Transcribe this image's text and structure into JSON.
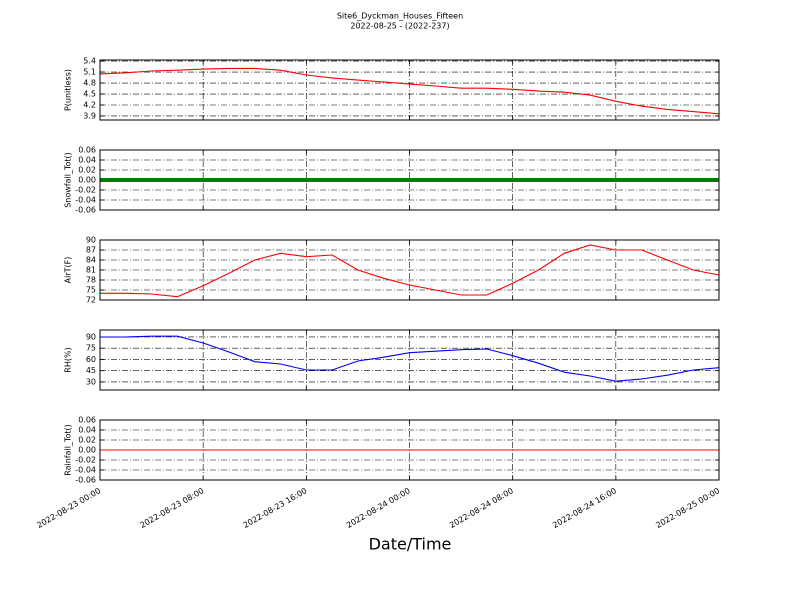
{
  "title": "Site6_Dyckman_Houses_Fifteen",
  "subtitle": "2022-08-25 - (2022-237)",
  "xlabel": "Date/Time",
  "chart_data": [
    {
      "type": "line",
      "ylabel": "P(unitless)",
      "ylim": [
        3.79,
        5.43
      ],
      "yticks": [
        3.9,
        4.2,
        4.5,
        4.8,
        5.1,
        5.4
      ],
      "grid": true,
      "xlim": [
        "2022-08-23 00:00",
        "2022-08-25 00:00"
      ],
      "xticks": [
        "2022-08-23 00:00",
        "2022-08-23 08:00",
        "2022-08-23 16:00",
        "2022-08-24 00:00",
        "2022-08-24 08:00",
        "2022-08-24 16:00",
        "2022-08-25 00:00"
      ],
      "x": [
        "2022-08-23 00:00",
        "2022-08-23 02:00",
        "2022-08-23 04:00",
        "2022-08-23 06:00",
        "2022-08-23 08:00",
        "2022-08-23 10:00",
        "2022-08-23 12:00",
        "2022-08-23 14:00",
        "2022-08-23 16:00",
        "2022-08-23 18:00",
        "2022-08-23 20:00",
        "2022-08-23 22:00",
        "2022-08-24 00:00",
        "2022-08-24 02:00",
        "2022-08-24 04:00",
        "2022-08-24 06:00",
        "2022-08-24 08:00",
        "2022-08-24 10:00",
        "2022-08-24 12:00",
        "2022-08-24 14:00",
        "2022-08-24 16:00",
        "2022-08-24 18:00",
        "2022-08-24 20:00",
        "2022-08-24 22:00",
        "2022-08-25 00:00"
      ],
      "color": "#ff0000",
      "values": [
        5.05,
        5.08,
        5.13,
        5.15,
        5.18,
        5.2,
        5.2,
        5.15,
        5.02,
        4.94,
        4.88,
        4.83,
        4.77,
        4.72,
        4.66,
        4.66,
        4.63,
        4.58,
        4.55,
        4.47,
        4.3,
        4.17,
        4.08,
        4.02,
        3.96
      ]
    },
    {
      "type": "line",
      "ylabel": "Snowfall_Tot()",
      "ylim": [
        -0.06,
        0.06
      ],
      "yticks": [
        -0.06,
        -0.04,
        -0.02,
        {
          "value": 0,
          "label": "0.00"
        },
        0.02,
        0.04,
        0.06
      ],
      "grid": true,
      "xlim": [
        "2022-08-23 00:00",
        "2022-08-25 00:00"
      ],
      "xticks": [
        "2022-08-23 00:00",
        "2022-08-23 08:00",
        "2022-08-23 16:00",
        "2022-08-24 00:00",
        "2022-08-24 08:00",
        "2022-08-24 16:00",
        "2022-08-25 00:00"
      ],
      "x": [
        "2022-08-23 00:00",
        "2022-08-23 02:00",
        "2022-08-23 04:00",
        "2022-08-23 06:00",
        "2022-08-23 08:00",
        "2022-08-23 10:00",
        "2022-08-23 12:00",
        "2022-08-23 14:00",
        "2022-08-23 16:00",
        "2022-08-23 18:00",
        "2022-08-23 20:00",
        "2022-08-23 22:00",
        "2022-08-24 00:00",
        "2022-08-24 02:00",
        "2022-08-24 04:00",
        "2022-08-24 06:00",
        "2022-08-24 08:00",
        "2022-08-24 10:00",
        "2022-08-24 12:00",
        "2022-08-24 14:00",
        "2022-08-24 16:00",
        "2022-08-24 18:00",
        "2022-08-24 20:00",
        "2022-08-24 22:00",
        "2022-08-25 00:00"
      ],
      "color": "#008000",
      "values": [
        0,
        0,
        0,
        0,
        0,
        0,
        0,
        0,
        0,
        0,
        0,
        0,
        0,
        0,
        0,
        0,
        0,
        0,
        0,
        0,
        0,
        0,
        0,
        0,
        0
      ]
    },
    {
      "type": "line",
      "ylabel": "AirT(F)",
      "ylim": [
        72,
        90
      ],
      "yticks": [
        72,
        75,
        78,
        81,
        84,
        87,
        90
      ],
      "grid": true,
      "xlim": [
        "2022-08-23 00:00",
        "2022-08-25 00:00"
      ],
      "xticks": [
        "2022-08-23 00:00",
        "2022-08-23 08:00",
        "2022-08-23 16:00",
        "2022-08-24 00:00",
        "2022-08-24 08:00",
        "2022-08-24 16:00",
        "2022-08-25 00:00"
      ],
      "x": [
        "2022-08-23 00:00",
        "2022-08-23 02:00",
        "2022-08-23 04:00",
        "2022-08-23 06:00",
        "2022-08-23 08:00",
        "2022-08-23 10:00",
        "2022-08-23 12:00",
        "2022-08-23 14:00",
        "2022-08-23 16:00",
        "2022-08-23 18:00",
        "2022-08-23 20:00",
        "2022-08-23 22:00",
        "2022-08-24 00:00",
        "2022-08-24 02:00",
        "2022-08-24 04:00",
        "2022-08-24 06:00",
        "2022-08-24 08:00",
        "2022-08-24 10:00",
        "2022-08-24 12:00",
        "2022-08-24 14:00",
        "2022-08-24 16:00",
        "2022-08-24 18:00",
        "2022-08-24 20:00",
        "2022-08-24 22:00",
        "2022-08-25 00:00"
      ],
      "color": "#ff0000",
      "values": [
        74,
        74,
        73.8,
        73,
        76.3,
        80,
        84,
        86,
        85,
        85.5,
        81,
        78.5,
        76.5,
        75,
        73.5,
        73.5,
        77,
        81,
        86,
        88.5,
        87,
        87,
        84,
        81,
        79.5
      ]
    },
    {
      "type": "line",
      "ylabel": "RH(%)",
      "ylim": [
        19.3,
        99.3
      ],
      "yticks": [
        30,
        45,
        60,
        75,
        90
      ],
      "grid": true,
      "xlim": [
        "2022-08-23 00:00",
        "2022-08-25 00:00"
      ],
      "xticks": [
        "2022-08-23 00:00",
        "2022-08-23 08:00",
        "2022-08-23 16:00",
        "2022-08-24 00:00",
        "2022-08-24 08:00",
        "2022-08-24 16:00",
        "2022-08-25 00:00"
      ],
      "x": [
        "2022-08-23 00:00",
        "2022-08-23 02:00",
        "2022-08-23 04:00",
        "2022-08-23 06:00",
        "2022-08-23 08:00",
        "2022-08-23 10:00",
        "2022-08-23 12:00",
        "2022-08-23 14:00",
        "2022-08-23 16:00",
        "2022-08-23 18:00",
        "2022-08-23 20:00",
        "2022-08-23 22:00",
        "2022-08-24 00:00",
        "2022-08-24 02:00",
        "2022-08-24 04:00",
        "2022-08-24 06:00",
        "2022-08-24 08:00",
        "2022-08-24 10:00",
        "2022-08-24 12:00",
        "2022-08-24 14:00",
        "2022-08-24 16:00",
        "2022-08-24 18:00",
        "2022-08-24 20:00",
        "2022-08-24 22:00",
        "2022-08-25 00:00"
      ],
      "color": "#0000ff",
      "values": [
        90,
        90,
        91,
        91,
        82,
        70,
        57,
        54,
        46,
        46,
        58,
        63,
        69,
        71,
        73,
        74,
        65,
        55,
        43,
        38,
        31,
        34,
        39,
        46,
        49
      ]
    },
    {
      "type": "line",
      "ylabel": "Rainfall_Tot()",
      "ylim": [
        -0.06,
        0.06
      ],
      "yticks": [
        -0.06,
        -0.04,
        -0.02,
        {
          "value": 0,
          "label": "0.00"
        },
        0.02,
        0.04,
        0.06
      ],
      "grid": true,
      "xlim": [
        "2022-08-23 00:00",
        "2022-08-25 00:00"
      ],
      "xticks": [
        "2022-08-23 00:00",
        "2022-08-23 08:00",
        "2022-08-23 16:00",
        "2022-08-24 00:00",
        "2022-08-24 08:00",
        "2022-08-24 16:00",
        "2022-08-25 00:00"
      ],
      "x": [
        "2022-08-23 00:00",
        "2022-08-23 02:00",
        "2022-08-23 04:00",
        "2022-08-23 06:00",
        "2022-08-23 08:00",
        "2022-08-23 10:00",
        "2022-08-23 12:00",
        "2022-08-23 14:00",
        "2022-08-23 16:00",
        "2022-08-23 18:00",
        "2022-08-23 20:00",
        "2022-08-23 22:00",
        "2022-08-24 00:00",
        "2022-08-24 02:00",
        "2022-08-24 04:00",
        "2022-08-24 06:00",
        "2022-08-24 08:00",
        "2022-08-24 10:00",
        "2022-08-24 12:00",
        "2022-08-24 14:00",
        "2022-08-24 16:00",
        "2022-08-24 18:00",
        "2022-08-24 20:00",
        "2022-08-24 22:00",
        "2022-08-25 00:00"
      ],
      "color": "#ff0000",
      "values": [
        0,
        0,
        0,
        0,
        0,
        0,
        0,
        0,
        0,
        0,
        0,
        0,
        0,
        0,
        0,
        0,
        0,
        0,
        0,
        0,
        0,
        0,
        0,
        0,
        0
      ]
    }
  ]
}
